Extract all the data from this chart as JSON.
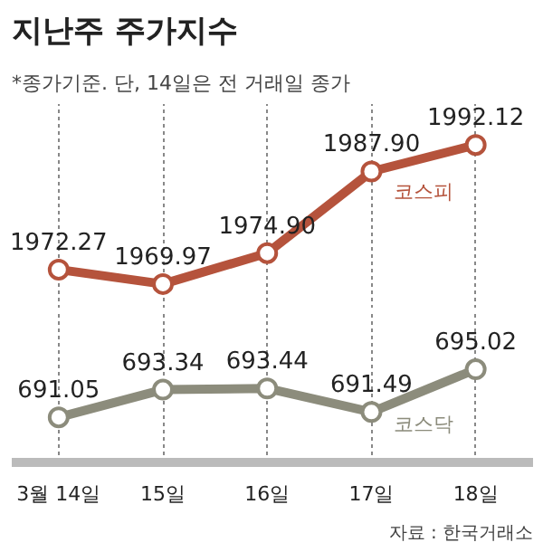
{
  "chart_data": [
    {
      "type": "line",
      "title": "지난주 주가지수",
      "subtitle": "*종가기준. 단, 14일은 전 거래일 종가",
      "categories": [
        null,
        null,
        null,
        null,
        null
      ],
      "series": [
        {
          "name": "코스피",
          "color": "#b5533c",
          "values": [
            1972.27,
            1969.97,
            1974.9,
            1987.9,
            1992.12
          ],
          "value_labels": [
            "1972.27",
            "1969.97",
            "1974.90",
            "1987.90",
            "1992.12"
          ]
        }
      ],
      "marker": "circle",
      "line_style": "solid",
      "grid": "x",
      "tick_labels": false
    },
    {
      "type": "line",
      "categories": [
        "3월 14일",
        "15일",
        "16일",
        "17일",
        "18일"
      ],
      "series": [
        {
          "name": "코스닥",
          "color": "#8c8c7c",
          "values": [
            691.05,
            693.34,
            693.44,
            691.49,
            695.02
          ],
          "value_labels": [
            "691.05",
            "693.34",
            "693.44",
            "691.49",
            "695.02"
          ]
        }
      ],
      "marker": "circle",
      "line_style": "solid",
      "grid": "x",
      "tick_labels": "x",
      "annotations": [
        "자료 : 한국거래소"
      ]
    }
  ]
}
